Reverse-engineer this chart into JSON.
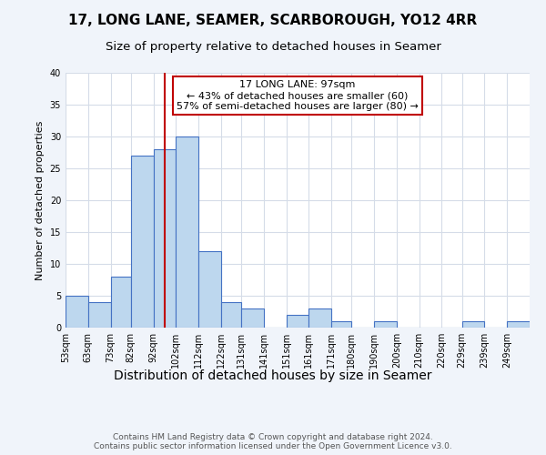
{
  "title": "17, LONG LANE, SEAMER, SCARBOROUGH, YO12 4RR",
  "subtitle": "Size of property relative to detached houses in Seamer",
  "xlabel": "Distribution of detached houses by size in Seamer",
  "ylabel": "Number of detached properties",
  "bin_labels": [
    "53sqm",
    "63sqm",
    "73sqm",
    "82sqm",
    "92sqm",
    "102sqm",
    "112sqm",
    "122sqm",
    "131sqm",
    "141sqm",
    "151sqm",
    "161sqm",
    "171sqm",
    "180sqm",
    "190sqm",
    "200sqm",
    "210sqm",
    "220sqm",
    "229sqm",
    "239sqm",
    "249sqm"
  ],
  "bin_edges": [
    53,
    63,
    73,
    82,
    92,
    102,
    112,
    122,
    131,
    141,
    151,
    161,
    171,
    180,
    190,
    200,
    210,
    220,
    229,
    239,
    249
  ],
  "bin_widths": [
    10,
    10,
    9,
    10,
    10,
    10,
    10,
    9,
    10,
    10,
    10,
    10,
    9,
    10,
    10,
    10,
    10,
    9,
    10,
    10,
    10
  ],
  "counts": [
    5,
    4,
    8,
    27,
    28,
    30,
    12,
    4,
    3,
    0,
    2,
    3,
    1,
    0,
    1,
    0,
    0,
    0,
    1,
    0,
    1
  ],
  "bar_color": "#bdd7ee",
  "bar_edge_color": "#4472c4",
  "bar_edge_width": 0.8,
  "vline_x": 97,
  "vline_color": "#c00000",
  "annotation_line1": "17 LONG LANE: 97sqm",
  "annotation_line2": "← 43% of detached houses are smaller (60)",
  "annotation_line3": "57% of semi-detached houses are larger (80) →",
  "annotation_box_color": "white",
  "annotation_box_edge_color": "#c00000",
  "annotation_box_edge_width": 1.5,
  "ylim": [
    0,
    40
  ],
  "yticks": [
    0,
    5,
    10,
    15,
    20,
    25,
    30,
    35,
    40
  ],
  "footnote": "Contains HM Land Registry data © Crown copyright and database right 2024.\nContains public sector information licensed under the Open Government Licence v3.0.",
  "background_color": "#f0f4fa",
  "plot_background_color": "white",
  "grid_color": "#d5dce8",
  "title_fontsize": 11,
  "subtitle_fontsize": 9.5,
  "xlabel_fontsize": 10,
  "ylabel_fontsize": 8,
  "tick_fontsize": 7,
  "annotation_fontsize": 8,
  "footnote_fontsize": 6.5
}
